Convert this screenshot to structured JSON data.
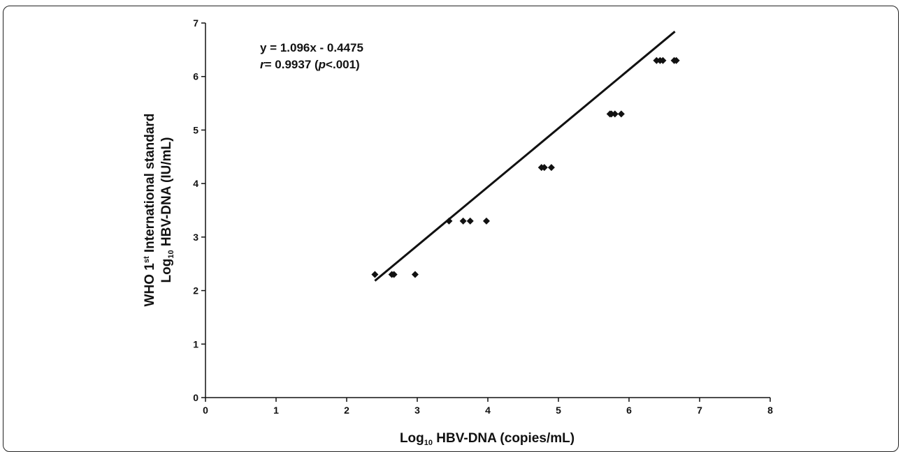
{
  "chart_data": {
    "type": "scatter",
    "title": "",
    "xlabel": {
      "prefix": "Log",
      "sub": "10",
      "rest": " HBV-DNA (copies/mL)"
    },
    "ylabel_line1": {
      "prefix": "WHO 1",
      "sup": "st",
      "rest": " International standard"
    },
    "ylabel_line2": {
      "prefix": "Log",
      "sub": "10",
      "rest": " HBV-DNA (IU/mL)"
    },
    "xlim": [
      0,
      8
    ],
    "ylim": [
      0,
      7
    ],
    "xticks": [
      0,
      1,
      2,
      3,
      4,
      5,
      6,
      7,
      8
    ],
    "yticks": [
      0,
      1,
      2,
      3,
      4,
      5,
      6,
      7
    ],
    "grid": false,
    "series": [
      {
        "marker": "diamond",
        "x": [
          2.4,
          2.64,
          2.67,
          2.97,
          3.45,
          3.65,
          3.75,
          3.98,
          4.76,
          4.8,
          4.9,
          5.73,
          5.75,
          5.8,
          5.89,
          6.39,
          6.44,
          6.48,
          6.64,
          6.67
        ],
        "y": [
          2.3,
          2.3,
          2.3,
          2.3,
          3.3,
          3.3,
          3.3,
          3.3,
          4.3,
          4.3,
          4.3,
          5.3,
          5.3,
          5.3,
          5.3,
          6.3,
          6.3,
          6.3,
          6.3,
          6.3
        ]
      }
    ],
    "fit_line": {
      "slope": 1.096,
      "intercept": -0.4475,
      "x_range": [
        2.4,
        6.65
      ]
    },
    "annotation_line1": "y = 1.096x - 0.4475",
    "annotation_line2": {
      "r": "r",
      "eq": "= 0.9937 (",
      "p": "p",
      "rest": "<.001)"
    },
    "colors": {
      "marks": "#111111",
      "axis": "#111111"
    }
  }
}
